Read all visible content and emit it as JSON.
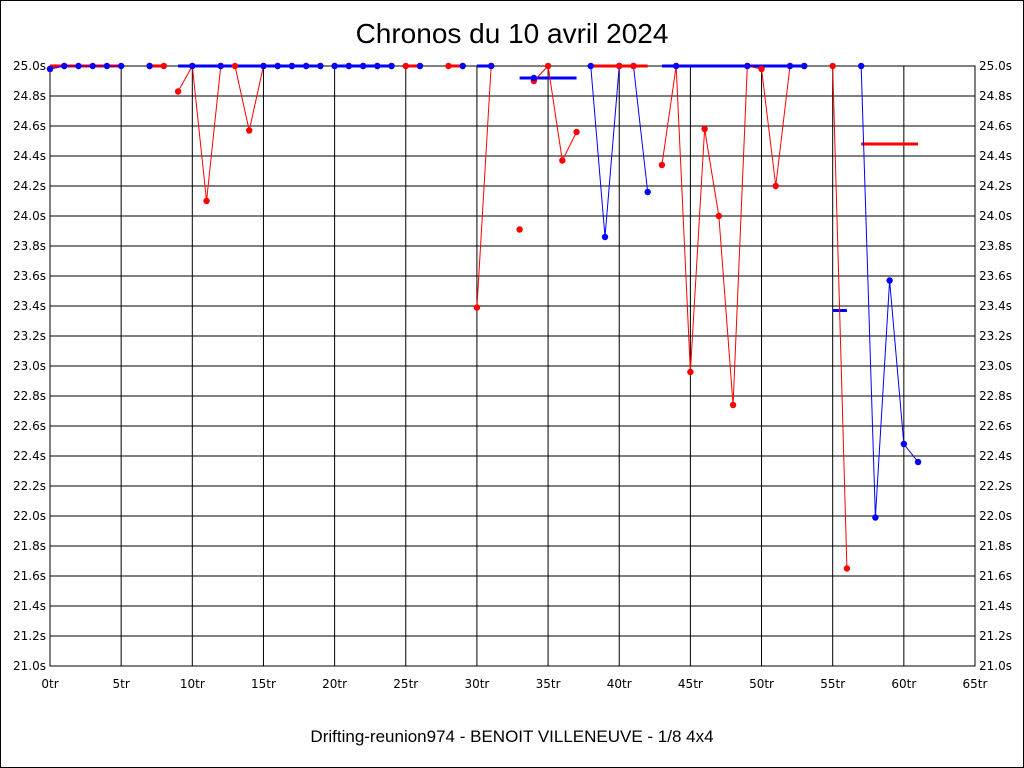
{
  "chart_data": {
    "type": "line",
    "title": "Chronos du 10 avril 2024",
    "footer": "Drifting-reunion974 - BENOIT VILLENEUVE - 1/8 4x4",
    "xlim": [
      0,
      65
    ],
    "ylim": [
      21.0,
      25.0
    ],
    "x_tick_labels": [
      "0tr",
      "5tr",
      "10tr",
      "15tr",
      "20tr",
      "25tr",
      "30tr",
      "35tr",
      "40tr",
      "45tr",
      "50tr",
      "55tr",
      "60tr",
      "65tr"
    ],
    "y_tick_labels": [
      "21.0s",
      "21.2s",
      "21.4s",
      "21.6s",
      "21.8s",
      "22.0s",
      "22.2s",
      "22.4s",
      "22.6s",
      "22.8s",
      "23.0s",
      "23.2s",
      "23.4s",
      "23.6s",
      "23.8s",
      "24.0s",
      "24.2s",
      "24.4s",
      "24.6s",
      "24.8s",
      "25.0s"
    ],
    "grid": true,
    "colors": {
      "red": "#ff0000",
      "blue": "#0000ff"
    },
    "series": [
      {
        "color": "red",
        "points": [
          [
            0,
            24.98
          ],
          [
            1,
            25.0
          ]
        ]
      },
      {
        "color": "blue",
        "points": [
          [
            0,
            24.98
          ],
          [
            1,
            25.0
          ],
          [
            2,
            25.0
          ],
          [
            3,
            25.0
          ],
          [
            4,
            25.0
          ],
          [
            5,
            25.0
          ]
        ]
      },
      {
        "color": "red",
        "points": [
          [
            7,
            25.0
          ],
          [
            8,
            25.0
          ]
        ]
      },
      {
        "color": "blue",
        "points": [
          [
            7,
            25.0
          ]
        ]
      },
      {
        "color": "red",
        "points": [
          [
            9,
            24.83
          ],
          [
            10,
            25.0
          ],
          [
            11,
            24.1
          ],
          [
            12,
            25.0
          ],
          [
            13,
            25.0
          ],
          [
            14,
            24.57
          ],
          [
            15,
            25.0
          ],
          [
            16,
            25.0
          ],
          [
            17,
            25.0
          ],
          [
            18,
            25.0
          ],
          [
            19,
            25.0
          ]
        ]
      },
      {
        "color": "blue",
        "points": [
          [
            10,
            25.0
          ],
          [
            12,
            25.0
          ],
          [
            15,
            25.0
          ],
          [
            16,
            25.0
          ],
          [
            17,
            25.0
          ],
          [
            18,
            25.0
          ],
          [
            19,
            25.0
          ]
        ]
      },
      {
        "color": "red",
        "points": [
          [
            20,
            25.0
          ],
          [
            21,
            25.0
          ],
          [
            22,
            25.0
          ],
          [
            23,
            25.0
          ],
          [
            24,
            25.0
          ]
        ]
      },
      {
        "color": "blue",
        "points": [
          [
            20,
            25.0
          ],
          [
            21,
            25.0
          ],
          [
            22,
            25.0
          ],
          [
            23,
            25.0
          ],
          [
            24,
            25.0
          ]
        ]
      },
      {
        "color": "red",
        "points": [
          [
            25,
            25.0
          ],
          [
            26,
            25.0
          ]
        ]
      },
      {
        "color": "blue",
        "points": [
          [
            26,
            25.0
          ]
        ]
      },
      {
        "color": "red",
        "points": [
          [
            28,
            25.0
          ],
          [
            29,
            25.0
          ]
        ]
      },
      {
        "color": "blue",
        "points": [
          [
            29,
            25.0
          ]
        ]
      },
      {
        "color": "red",
        "points": [
          [
            30,
            23.39
          ],
          [
            31,
            25.0
          ]
        ]
      },
      {
        "color": "blue",
        "points": [
          [
            31,
            25.0
          ]
        ]
      },
      {
        "color": "red",
        "points": [
          [
            33,
            23.91
          ]
        ]
      },
      {
        "color": "red",
        "points": [
          [
            34,
            24.9
          ],
          [
            35,
            25.0
          ],
          [
            36,
            24.37
          ],
          [
            37,
            24.56
          ]
        ]
      },
      {
        "color": "blue",
        "points": [
          [
            34,
            24.92
          ]
        ]
      },
      {
        "color": "blue",
        "points": [
          [
            38,
            25.0
          ],
          [
            39,
            23.86
          ],
          [
            40,
            25.0
          ],
          [
            41,
            25.0
          ],
          [
            42,
            24.16
          ]
        ]
      },
      {
        "color": "red",
        "points": [
          [
            40,
            25.0
          ],
          [
            41,
            25.0
          ]
        ]
      },
      {
        "color": "red",
        "points": [
          [
            43,
            24.34
          ],
          [
            44,
            25.0
          ],
          [
            45,
            22.96
          ],
          [
            46,
            24.58
          ],
          [
            47,
            24.0
          ],
          [
            48,
            22.74
          ],
          [
            49,
            25.0
          ],
          [
            50,
            24.98
          ],
          [
            51,
            24.2
          ],
          [
            52,
            25.0
          ],
          [
            53,
            25.0
          ]
        ]
      },
      {
        "color": "blue",
        "points": [
          [
            44,
            25.0
          ],
          [
            49,
            25.0
          ],
          [
            52,
            25.0
          ],
          [
            53,
            25.0
          ]
        ]
      },
      {
        "color": "red",
        "points": [
          [
            55,
            25.0
          ],
          [
            56,
            21.65
          ]
        ]
      },
      {
        "color": "blue",
        "points": [
          [
            57,
            25.0
          ],
          [
            58,
            21.99
          ],
          [
            59,
            23.57
          ],
          [
            60,
            22.48
          ],
          [
            61,
            22.36
          ]
        ]
      }
    ],
    "segments": [
      {
        "color": "red",
        "x1": 0,
        "x2": 5,
        "y": 25.0
      },
      {
        "color": "red",
        "x1": 7,
        "x2": 8,
        "y": 25.0
      },
      {
        "color": "blue",
        "x1": 9,
        "x2": 19,
        "y": 25.0
      },
      {
        "color": "blue",
        "x1": 20,
        "x2": 24,
        "y": 25.0
      },
      {
        "color": "red",
        "x1": 25,
        "x2": 26,
        "y": 25.0
      },
      {
        "color": "red",
        "x1": 28,
        "x2": 29,
        "y": 25.0
      },
      {
        "color": "blue",
        "x1": 30,
        "x2": 31,
        "y": 25.0
      },
      {
        "color": "blue",
        "x1": 33,
        "x2": 37,
        "y": 24.92
      },
      {
        "color": "red",
        "x1": 38,
        "x2": 42,
        "y": 25.0
      },
      {
        "color": "blue",
        "x1": 43,
        "x2": 53,
        "y": 25.0
      },
      {
        "color": "blue",
        "x1": 55,
        "x2": 56,
        "y": 23.37
      },
      {
        "color": "red",
        "x1": 57,
        "x2": 61,
        "y": 24.48
      }
    ]
  }
}
